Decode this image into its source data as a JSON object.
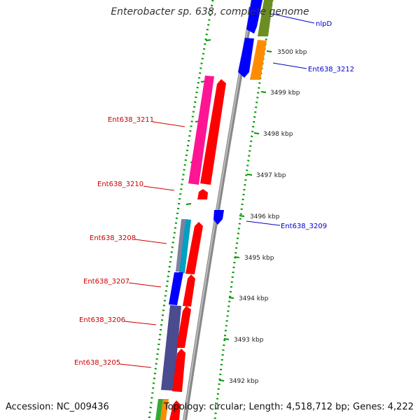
{
  "title": "Enterobacter sp. 638, complete genome",
  "footer": {
    "accession": "Accession: NC_009436",
    "summary": "Topology: circular; Length: 4,518,712 bp; Genes: 4,222"
  },
  "colors": {
    "forward_label": "#cc0000",
    "reverse_label": "#0000cc",
    "forward_gene": "#ff0000",
    "reverse_gene": "#0000ff",
    "backbone": "#888888",
    "tick_dots": "#009900"
  },
  "ruler": {
    "unit": "kbp",
    "ticks": [
      {
        "label": "3500 kbp"
      },
      {
        "label": "3499 kbp"
      },
      {
        "label": "3498 kbp"
      },
      {
        "label": "3497 kbp"
      },
      {
        "label": "3496 kbp"
      },
      {
        "label": "3495 kbp"
      },
      {
        "label": "3494 kbp"
      },
      {
        "label": "3493 kbp"
      },
      {
        "label": "3492 kbp"
      }
    ]
  },
  "gene_labels": [
    {
      "text": "nlpD",
      "strand": "reverse"
    },
    {
      "text": "Ent638_3212",
      "strand": "reverse"
    },
    {
      "text": "Ent638_3211",
      "strand": "forward"
    },
    {
      "text": "Ent638_3210",
      "strand": "forward"
    },
    {
      "text": "Ent638_3209",
      "strand": "reverse"
    },
    {
      "text": "Ent638_3208",
      "strand": "forward"
    },
    {
      "text": "Ent638_3207",
      "strand": "forward"
    },
    {
      "text": "Ent638_3206",
      "strand": "forward"
    },
    {
      "text": "Ent638_3205",
      "strand": "forward"
    }
  ]
}
